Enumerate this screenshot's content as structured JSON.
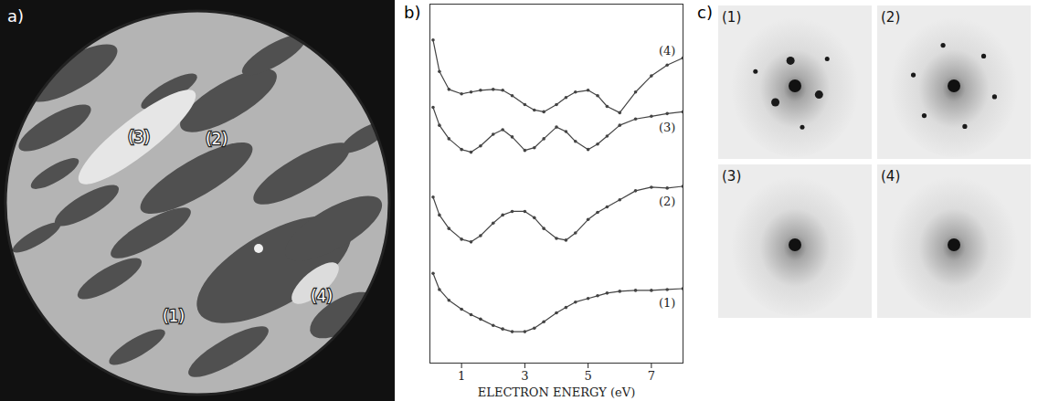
{
  "image_panel": {
    "panel_label": "a)",
    "region_labels": [
      "(1)",
      "(2)",
      "(3)",
      "(4)"
    ]
  },
  "chart_data": {
    "panel_label": "b)",
    "type": "line",
    "marker": "circle",
    "tick_labels": "x",
    "xlabel": "ELECTRON ENERGY (eV)",
    "x": [
      0.1,
      0.3,
      0.6,
      1.0,
      1.3,
      1.6,
      2.0,
      2.3,
      2.6,
      3.0,
      3.3,
      3.6,
      4.0,
      4.3,
      4.6,
      5.0,
      5.3,
      5.6,
      6.0,
      6.5,
      7.0,
      7.5,
      8.0
    ],
    "xlim": [
      0,
      8
    ],
    "xticks": [
      1,
      3,
      5,
      7
    ],
    "ylim": [
      0,
      400
    ],
    "series": [
      {
        "name": "(1)",
        "color": "#444444",
        "values": [
          100,
          82,
          70,
          60,
          54,
          49,
          42,
          38,
          35,
          35,
          39,
          46,
          56,
          62,
          68,
          72,
          75,
          78,
          80,
          81,
          81,
          82,
          83
        ]
      },
      {
        "name": "(2)",
        "color": "#444444",
        "values": [
          185,
          165,
          150,
          138,
          135,
          142,
          156,
          165,
          169,
          169,
          162,
          150,
          139,
          137,
          145,
          160,
          168,
          174,
          182,
          192,
          196,
          195,
          197
        ]
      },
      {
        "name": "(3)",
        "color": "#444444",
        "values": [
          285,
          265,
          250,
          238,
          235,
          242,
          255,
          260,
          252,
          237,
          240,
          250,
          263,
          258,
          247,
          238,
          244,
          253,
          265,
          272,
          275,
          278,
          280
        ]
      },
      {
        "name": "(4)",
        "color": "#444444",
        "values": [
          360,
          325,
          305,
          300,
          302,
          304,
          305,
          304,
          298,
          288,
          282,
          280,
          288,
          296,
          302,
          304,
          298,
          286,
          279,
          302,
          320,
          332,
          340
        ]
      }
    ]
  },
  "diffraction_panel": {
    "panel_label": "c)",
    "pattern_labels": [
      "(1)",
      "(2)",
      "(3)",
      "(4)"
    ]
  }
}
